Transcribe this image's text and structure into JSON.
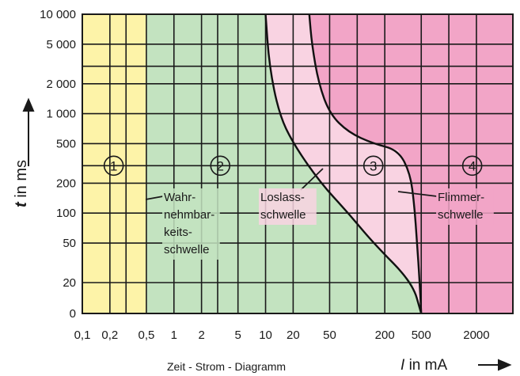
{
  "chart_data": {
    "type": "area",
    "caption": "Zeit - Strom - Diagramm",
    "ylabel_var": "t",
    "ylabel_unit": "in ms",
    "xlabel_var": "I",
    "xlabel_unit": "in mA",
    "x_scale": "log",
    "y_scale": "log",
    "x_ticks": [
      {
        "v": 0.1,
        "label": "0,1"
      },
      {
        "v": 0.2,
        "label": "0,2"
      },
      {
        "v": 0.5,
        "label": "0,5"
      },
      {
        "v": 1,
        "label": "1"
      },
      {
        "v": 2,
        "label": "2"
      },
      {
        "v": 5,
        "label": "5"
      },
      {
        "v": 10,
        "label": "10"
      },
      {
        "v": 20,
        "label": "20"
      },
      {
        "v": 50,
        "label": "50"
      },
      {
        "v": 200,
        "label": "200"
      },
      {
        "v": 500,
        "label": "500"
      },
      {
        "v": 2000,
        "label": "2000"
      }
    ],
    "y_ticks": [
      {
        "v": 10000,
        "label": "10 000"
      },
      {
        "v": 5000,
        "label": "5 000"
      },
      {
        "v": 2000,
        "label": "2 000"
      },
      {
        "v": 1000,
        "label": "1 000"
      },
      {
        "v": 500,
        "label": "500"
      },
      {
        "v": 200,
        "label": "200"
      },
      {
        "v": 100,
        "label": "100"
      },
      {
        "v": 50,
        "label": "50"
      },
      {
        "v": 20,
        "label": "20"
      },
      {
        "v": 0,
        "label": "0"
      }
    ],
    "zones": [
      {
        "id": "1",
        "label": "1",
        "color": "#fdf3a8",
        "x_from": 0.1,
        "x_to": 0.5
      },
      {
        "id": "2",
        "label": "2",
        "color": "#c3e3c0",
        "x_from": 0.5,
        "x_to": "Loslassschwelle"
      },
      {
        "id": "3",
        "label": "3",
        "color": "#f9d3e2",
        "x_from": "Loslassschwelle",
        "x_to": "Flimmerschwelle"
      },
      {
        "id": "4",
        "label": "4",
        "color": "#f2a5c7",
        "x_from": "Flimmerschwelle",
        "x_to": 5000
      }
    ],
    "curves": [
      {
        "name": "Loslassschwelle",
        "points": [
          [
            10,
            10000
          ],
          [
            11,
            3000
          ],
          [
            14,
            1000
          ],
          [
            20,
            500
          ],
          [
            40,
            200
          ],
          [
            80,
            100
          ],
          [
            150,
            50
          ],
          [
            400,
            20
          ],
          [
            500,
            0
          ]
        ]
      },
      {
        "name": "Flimmerschwelle",
        "points": [
          [
            30,
            10000
          ],
          [
            32,
            5000
          ],
          [
            38,
            2000
          ],
          [
            50,
            1000
          ],
          [
            80,
            650
          ],
          [
            150,
            500
          ],
          [
            280,
            430
          ],
          [
            380,
            250
          ],
          [
            420,
            120
          ],
          [
            450,
            50
          ],
          [
            480,
            20
          ],
          [
            500,
            0
          ]
        ]
      }
    ],
    "annotations": [
      {
        "lines": [
          "Wahr-",
          "nehmbar-",
          "keits-",
          "schwelle"
        ],
        "target_zone": "2"
      },
      {
        "lines": [
          "Loslass-",
          "schwelle"
        ],
        "target_curve": "Loslassschwelle"
      },
      {
        "lines": [
          "Flimmer-",
          "schwelle"
        ],
        "target_curve": "Flimmerschwelle"
      }
    ],
    "grid": true
  }
}
